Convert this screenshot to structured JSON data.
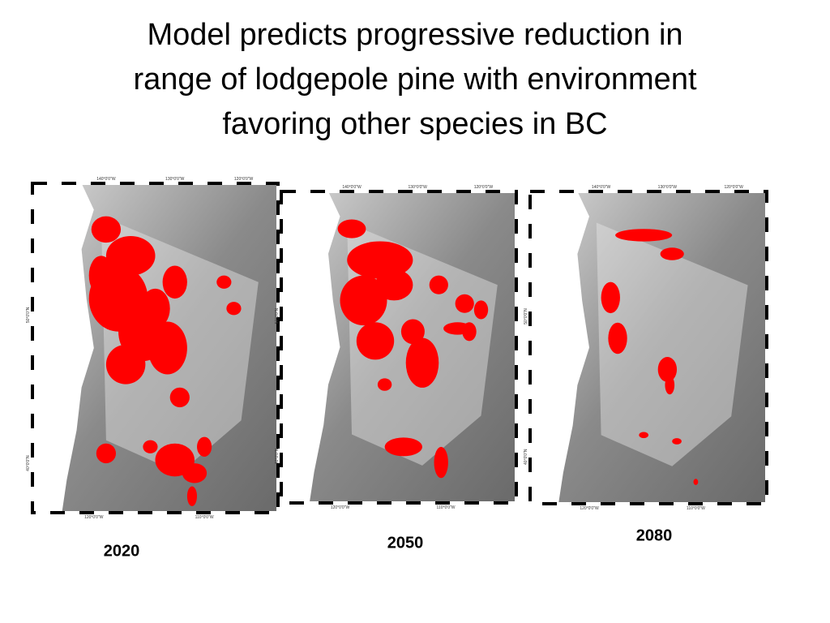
{
  "title_lines": [
    "Model predicts progressive reduction in",
    "range of lodgepole pine with environment",
    "favoring other species in BC"
  ],
  "maps": [
    {
      "year": "2020",
      "top_labels": [
        "140°0'0\"W",
        "130°0'0\"W",
        "120°0'0\"W"
      ],
      "bottom_labels": [
        "120°0'0\"W",
        "110°0'0\"W"
      ],
      "side_labels": [
        "50°0'0\"N",
        "40°0'0\"N"
      ]
    },
    {
      "year": "2050",
      "top_labels": [
        "140°0'0\"W",
        "130°0'0\"W",
        "120°0'0\"W"
      ],
      "bottom_labels": [
        "120°0'0\"W",
        "110°0'0\"W"
      ],
      "side_labels": [
        "50°0'0\"N",
        "40°0'0\"N"
      ]
    },
    {
      "year": "2080",
      "top_labels": [
        "140°0'0\"W",
        "130°0'0\"W",
        "120°0'0\"W"
      ],
      "bottom_labels": [
        "120°0'0\"W",
        "110°0'0\"W"
      ],
      "side_labels": [
        "50°0'0\"N",
        "40°0'0\"N"
      ]
    }
  ]
}
